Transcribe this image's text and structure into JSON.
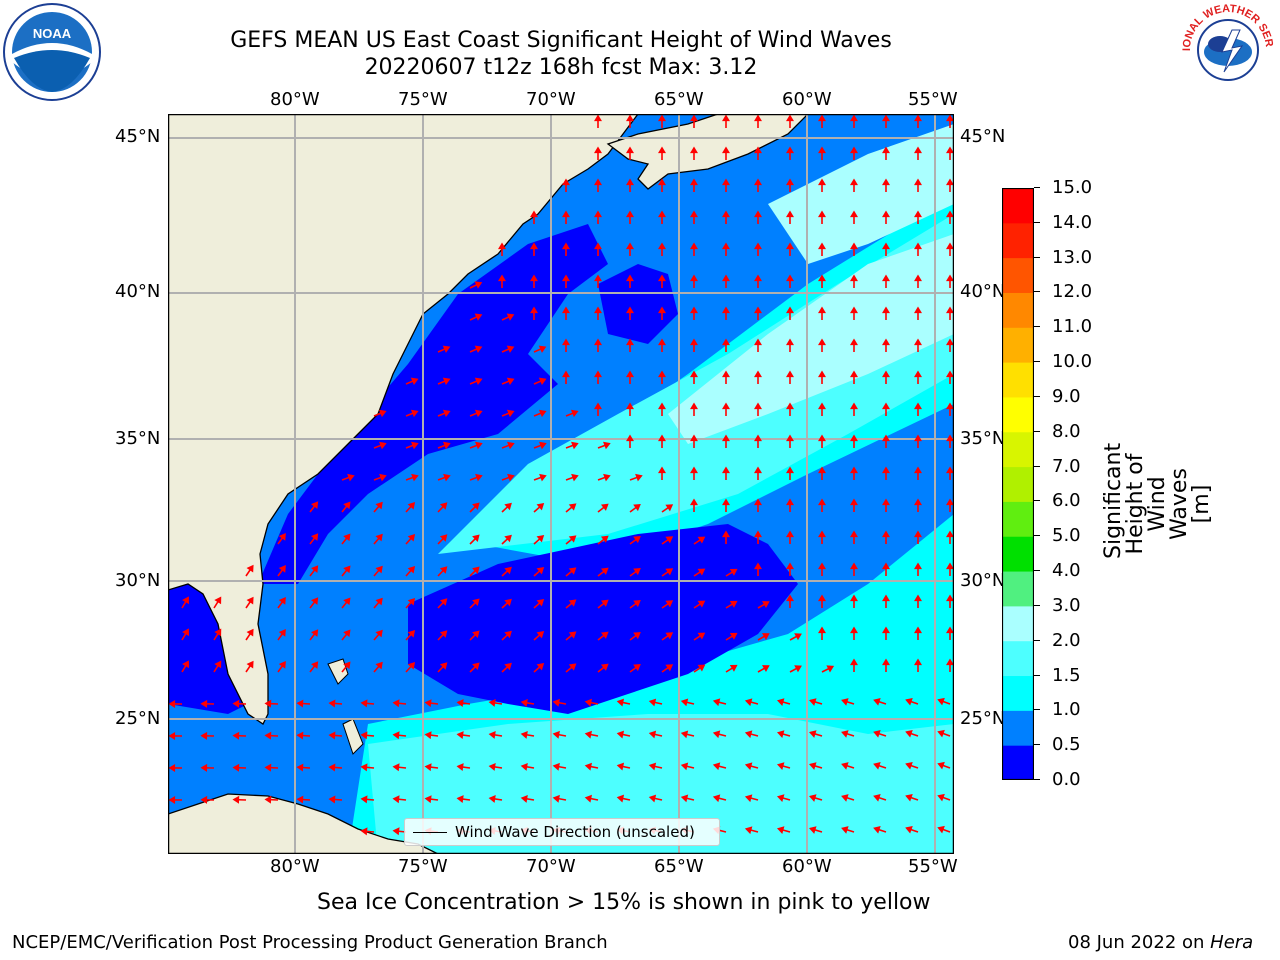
{
  "title": {
    "line1": "GEFS MEAN US East Coast Significant Height of Wind Waves",
    "line2": "20220607 t12z 168h fcst   Max: 3.12"
  },
  "logos": {
    "left": "noaa-logo",
    "right": "national-weather-service-logo",
    "left_text": "NOAA",
    "right_text": "NATIONAL WEATHER SERVICE"
  },
  "map": {
    "lon_labels": [
      "80°W",
      "75°W",
      "70°W",
      "65°W",
      "60°W",
      "55°W"
    ],
    "lat_labels": [
      "45°N",
      "40°N",
      "35°N",
      "30°N",
      "25°N"
    ],
    "legend": "Wind Wave Direction (unscaled)",
    "land_color": "#efeedb",
    "vector_color": "#ff0000"
  },
  "colorbar": {
    "label": "Significant Height of Wind Waves [m]",
    "tick_labels": [
      "0.0",
      "0.5",
      "1.0",
      "1.5",
      "2.0",
      "3.0",
      "4.0",
      "5.0",
      "6.0",
      "7.0",
      "8.0",
      "9.0",
      "10.0",
      "11.0",
      "12.0",
      "13.0",
      "14.0",
      "15.0"
    ],
    "colors": [
      "#0000ff",
      "#0080ff",
      "#00ffff",
      "#4dffff",
      "#aaffff",
      "#50f080",
      "#00e000",
      "#60ee10",
      "#b0f000",
      "#d8f500",
      "#ffff00",
      "#ffe000",
      "#ffb000",
      "#ff8800",
      "#ff5500",
      "#ff2200",
      "#ff0000"
    ]
  },
  "notes": {
    "sea_ice": "Sea Ice Concentration > 15% is shown in pink to yellow"
  },
  "footer": {
    "left": "NCEP/EMC/Verification Post Processing Product Generation Branch",
    "date": "08 Jun 2022 on ",
    "machine": "Hera"
  }
}
